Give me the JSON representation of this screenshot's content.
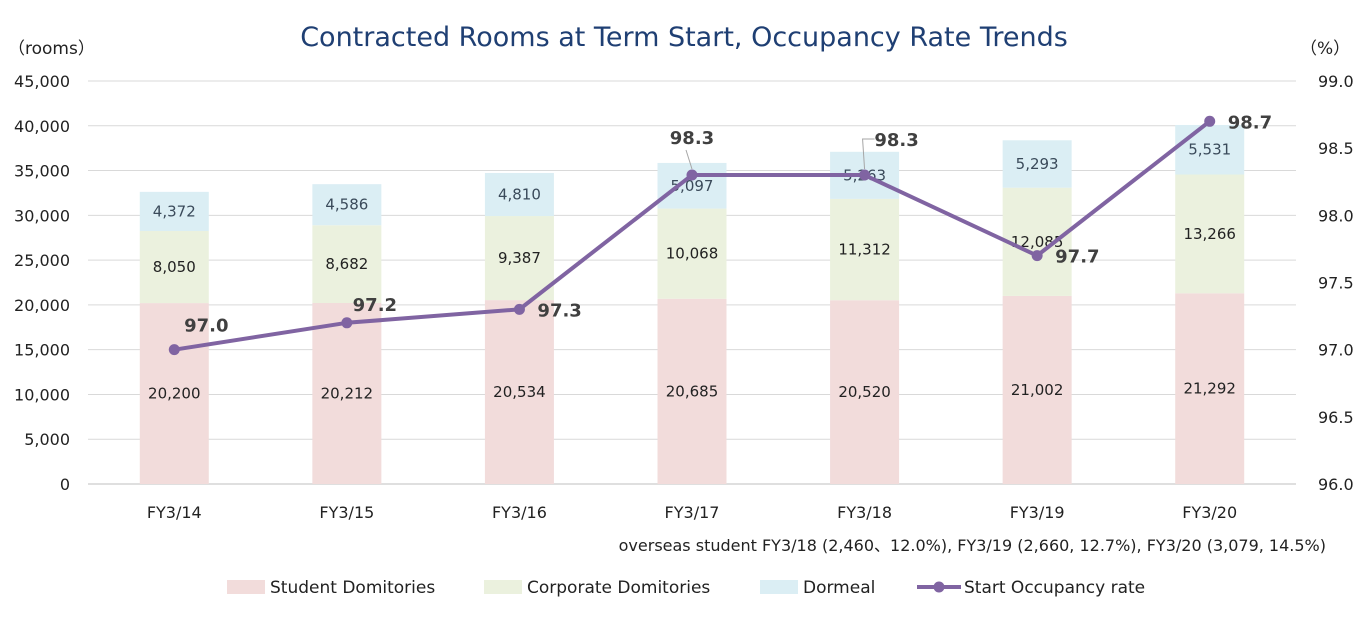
{
  "chart_data": {
    "type": "bar",
    "title": "Contracted Rooms at Term Start, Occupancy Rate Trends",
    "left_axis_unit": "（rooms）",
    "right_axis_unit": "（%）",
    "categories": [
      "FY3/14",
      "FY3/15",
      "FY3/16",
      "FY3/17",
      "FY3/18",
      "FY3/19",
      "FY3/20"
    ],
    "left_axis": {
      "min": 0,
      "max": 45000,
      "step": 5000,
      "tick_labels": [
        "0",
        "5,000",
        "10,000",
        "15,000",
        "20,000",
        "25,000",
        "30,000",
        "35,000",
        "40,000",
        "45,000"
      ]
    },
    "right_axis": {
      "min": 96.0,
      "max": 99.0,
      "step": 0.5,
      "tick_labels": [
        "96.0",
        "96.5",
        "97.0",
        "97.5",
        "98.0",
        "98.5",
        "99.0"
      ]
    },
    "grid": "horizontal",
    "legend_position": "bottom",
    "series": [
      {
        "name": "Student Domitories",
        "color": "#f2dcdb",
        "values": [
          20200,
          20212,
          20534,
          20685,
          20520,
          21002,
          21292
        ],
        "labels": [
          "20,200",
          "20,212",
          "20,534",
          "20,685",
          "20,520",
          "21,002",
          "21,292"
        ]
      },
      {
        "name": "Corporate Domitories",
        "color": "#ebf1de",
        "values": [
          8050,
          8682,
          9387,
          10068,
          11312,
          12085,
          13266
        ],
        "labels": [
          "8,050",
          "8,682",
          "9,387",
          "10,068",
          "11,312",
          "12,085",
          "13,266"
        ]
      },
      {
        "name": "Dormeal",
        "color": "#dbeef4",
        "values": [
          4372,
          4586,
          4810,
          5097,
          5263,
          5293,
          5531
        ],
        "labels": [
          "4,372",
          "4,586",
          "4,810",
          "5,097",
          "5,263",
          "5,293",
          "5,531"
        ]
      },
      {
        "name": "Start Occupancy rate",
        "color": "#8064a2",
        "type": "line",
        "axis": "right",
        "values": [
          97.0,
          97.2,
          97.3,
          98.3,
          98.3,
          97.7,
          98.7
        ],
        "labels": [
          "97.0",
          "97.2",
          "97.3",
          "98.3",
          "98.3",
          "97.7",
          "98.7"
        ]
      }
    ],
    "annotation": "overseas student   FY3/18 (2,460、12.0%), FY3/19 (2,660, 12.7%), FY3/20 (3,079, 14.5%)"
  }
}
